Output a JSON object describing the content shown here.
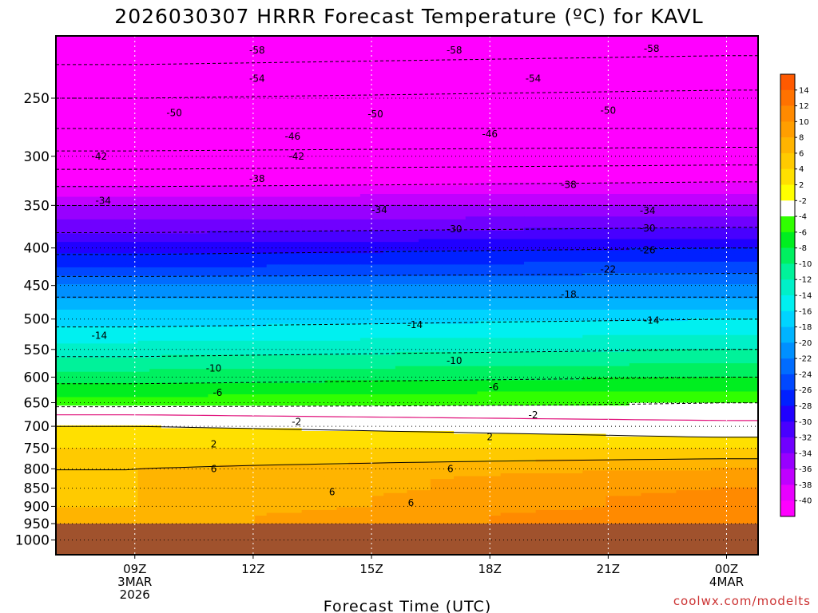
{
  "chart_data": {
    "type": "heatmap",
    "title": "2026030307 HRRR Forecast Temperature (ºC) for KAVL",
    "xlabel": "Forecast Time (UTC)",
    "ylabel": "",
    "credit": "coolwx.com/modelts",
    "x_range_hours_utc": [
      7,
      24.8
    ],
    "x_ticks": [
      {
        "hour": 9,
        "lines": [
          "09Z",
          "3MAR",
          "2026"
        ]
      },
      {
        "hour": 12,
        "lines": [
          "12Z"
        ]
      },
      {
        "hour": 15,
        "lines": [
          "15Z"
        ]
      },
      {
        "hour": 18,
        "lines": [
          "18Z"
        ]
      },
      {
        "hour": 21,
        "lines": [
          "21Z"
        ]
      },
      {
        "hour": 24,
        "lines": [
          "00Z",
          "4MAR"
        ]
      }
    ],
    "y_axis": {
      "scale": "log-pressure",
      "unit": "hPa",
      "range": [
        1060,
        200
      ],
      "inverted": true
    },
    "y_ticks": [
      250,
      300,
      350,
      400,
      450,
      500,
      550,
      600,
      650,
      700,
      750,
      800,
      850,
      900,
      950,
      1000
    ],
    "grid": true,
    "ground_level_hpa": 950,
    "colorbar": {
      "position": "right",
      "labels": [
        "14",
        "12",
        "10",
        "8",
        "6",
        "4",
        "2",
        "-2",
        "-4",
        "-6",
        "-8",
        "-10",
        "-12",
        "-14",
        "-16",
        "-18",
        "-20",
        "-22",
        "-24",
        "-26",
        "-28",
        "-30",
        "-32",
        "-34",
        "-36",
        "-38",
        "-40"
      ],
      "colors": [
        "#ff5a00",
        "#ff7200",
        "#ff8a00",
        "#ff9e00",
        "#ffb400",
        "#ffca00",
        "#ffe000",
        "#ffff00",
        "#ffffff",
        "#30ff00",
        "#00ee20",
        "#00f060",
        "#00f29a",
        "#00f0c8",
        "#00f0f0",
        "#00d4ff",
        "#00b4ff",
        "#0090ff",
        "#006cff",
        "#0048ff",
        "#0020ff",
        "#2000ff",
        "#4800ff",
        "#7000ff",
        "#9800ff",
        "#c000ff",
        "#e800ff",
        "#ff00ff"
      ]
    },
    "temperature_profile": {
      "levels_hpa": [
        225,
        250,
        275,
        300,
        325,
        350,
        375,
        400,
        425,
        450,
        475,
        500,
        525,
        550,
        575,
        600,
        625,
        650,
        675,
        700,
        725,
        750,
        775,
        800,
        825,
        850,
        875,
        900,
        925,
        950
      ],
      "temps_c_09Z": [
        -58,
        -54,
        -50,
        -45,
        -39,
        -34,
        -31,
        -27,
        -24,
        -20,
        -17,
        -15,
        -13,
        -11,
        -9,
        -7,
        -5,
        -3,
        0,
        2,
        3,
        4,
        5,
        6,
        6,
        6,
        6,
        6,
        7,
        7
      ],
      "temps_c_00Z": [
        -57,
        -53,
        -50,
        -44,
        -38,
        -34,
        -30,
        -26,
        -23,
        -20,
        -17,
        -14,
        -12,
        -10,
        -8,
        -6,
        -4,
        -2,
        -1,
        1,
        2,
        4,
        6,
        8,
        10,
        10,
        11,
        11,
        12,
        12
      ]
    },
    "contour_labels": [
      {
        "text": "-58",
        "x_hour": 12.1,
        "p_hpa": 215
      },
      {
        "text": "-58",
        "x_hour": 17.1,
        "p_hpa": 215
      },
      {
        "text": "-58",
        "x_hour": 22.1,
        "p_hpa": 214
      },
      {
        "text": "-54",
        "x_hour": 12.1,
        "p_hpa": 235
      },
      {
        "text": "-54",
        "x_hour": 19.1,
        "p_hpa": 235
      },
      {
        "text": "-50",
        "x_hour": 10.0,
        "p_hpa": 262
      },
      {
        "text": "-50",
        "x_hour": 15.1,
        "p_hpa": 263
      },
      {
        "text": "-50",
        "x_hour": 21.0,
        "p_hpa": 260
      },
      {
        "text": "-46",
        "x_hour": 13.0,
        "p_hpa": 282
      },
      {
        "text": "-46",
        "x_hour": 18.0,
        "p_hpa": 280
      },
      {
        "text": "-42",
        "x_hour": 8.1,
        "p_hpa": 300
      },
      {
        "text": "-42",
        "x_hour": 13.1,
        "p_hpa": 300
      },
      {
        "text": "-38",
        "x_hour": 12.1,
        "p_hpa": 322
      },
      {
        "text": "-38",
        "x_hour": 20.0,
        "p_hpa": 328
      },
      {
        "text": "-34",
        "x_hour": 8.2,
        "p_hpa": 345
      },
      {
        "text": "-34",
        "x_hour": 15.2,
        "p_hpa": 355
      },
      {
        "text": "-34",
        "x_hour": 22.0,
        "p_hpa": 356
      },
      {
        "text": "-30",
        "x_hour": 17.1,
        "p_hpa": 377
      },
      {
        "text": "-30",
        "x_hour": 22.0,
        "p_hpa": 376
      },
      {
        "text": "-26",
        "x_hour": 22.0,
        "p_hpa": 403
      },
      {
        "text": "-22",
        "x_hour": 21.0,
        "p_hpa": 428
      },
      {
        "text": "-18",
        "x_hour": 20.0,
        "p_hpa": 463
      },
      {
        "text": "-14",
        "x_hour": 8.1,
        "p_hpa": 527
      },
      {
        "text": "-14",
        "x_hour": 16.1,
        "p_hpa": 509
      },
      {
        "text": "-14",
        "x_hour": 22.1,
        "p_hpa": 502
      },
      {
        "text": "-10",
        "x_hour": 11.0,
        "p_hpa": 584
      },
      {
        "text": "-10",
        "x_hour": 17.1,
        "p_hpa": 570
      },
      {
        "text": "-6",
        "x_hour": 11.1,
        "p_hpa": 630
      },
      {
        "text": "-6",
        "x_hour": 18.1,
        "p_hpa": 619
      },
      {
        "text": "-2",
        "x_hour": 13.1,
        "p_hpa": 690
      },
      {
        "text": "-2",
        "x_hour": 19.1,
        "p_hpa": 676
      },
      {
        "text": "2",
        "x_hour": 11.0,
        "p_hpa": 740
      },
      {
        "text": "2",
        "x_hour": 18.0,
        "p_hpa": 724
      },
      {
        "text": "6",
        "x_hour": 11.0,
        "p_hpa": 800
      },
      {
        "text": "6",
        "x_hour": 14.0,
        "p_hpa": 860
      },
      {
        "text": "6",
        "x_hour": 16.0,
        "p_hpa": 890
      },
      {
        "text": "6",
        "x_hour": 17.0,
        "p_hpa": 800
      }
    ]
  }
}
